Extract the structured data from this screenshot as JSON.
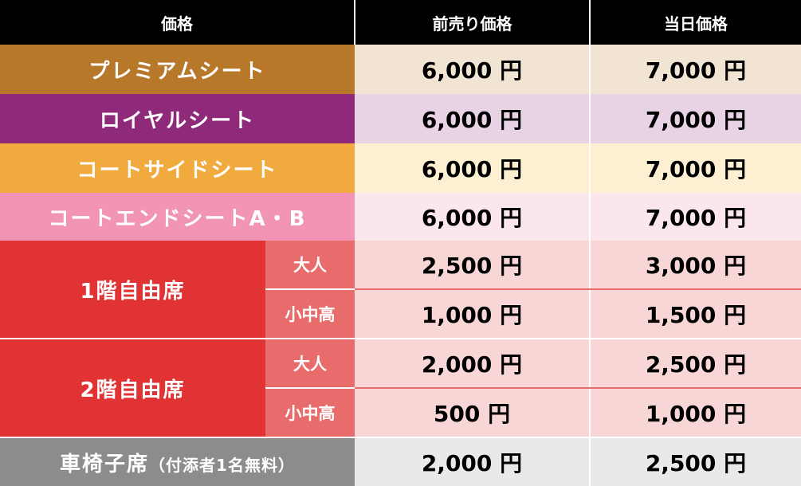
{
  "header": {
    "col1": "価格",
    "col2": "前売り価格",
    "col3": "当日価格"
  },
  "unit": "円",
  "rows": {
    "premium": {
      "label": "プレミアムシート",
      "presale": "6,000 円",
      "dayof": "7,000 円"
    },
    "royal": {
      "label": "ロイヤルシート",
      "presale": "6,000 円",
      "dayof": "7,000 円"
    },
    "courtside": {
      "label": "コートサイドシート",
      "presale": "6,000 円",
      "dayof": "7,000 円"
    },
    "courtend": {
      "label": "コートエンドシートA・B",
      "presale": "6,000 円",
      "dayof": "7,000 円"
    },
    "floor1": {
      "label": "1階自由席",
      "adult": {
        "label": "大人",
        "presale": "2,500 円",
        "dayof": "3,000 円"
      },
      "student": {
        "label": "小中高",
        "presale": "1,000 円",
        "dayof": "1,500 円"
      }
    },
    "floor2": {
      "label": "2階自由席",
      "adult": {
        "label": "大人",
        "presale": "2,000 円",
        "dayof": "2,500 円"
      },
      "student": {
        "label": "小中高",
        "presale": "500 円",
        "dayof": "1,000 円"
      }
    },
    "wheelchair": {
      "label": "車椅子席",
      "note": "（付添者1名無料）",
      "presale": "2,000 円",
      "dayof": "2,500 円"
    }
  },
  "colors": {
    "header": "#000000",
    "premium": "#b8782a",
    "royal": "#8f2a7b",
    "courtside": "#f0aa3d",
    "courtend": "#f194b5",
    "free_seat": "#e23334",
    "sub_label": "#e96c6c",
    "wheelchair": "#8c8c8c"
  }
}
